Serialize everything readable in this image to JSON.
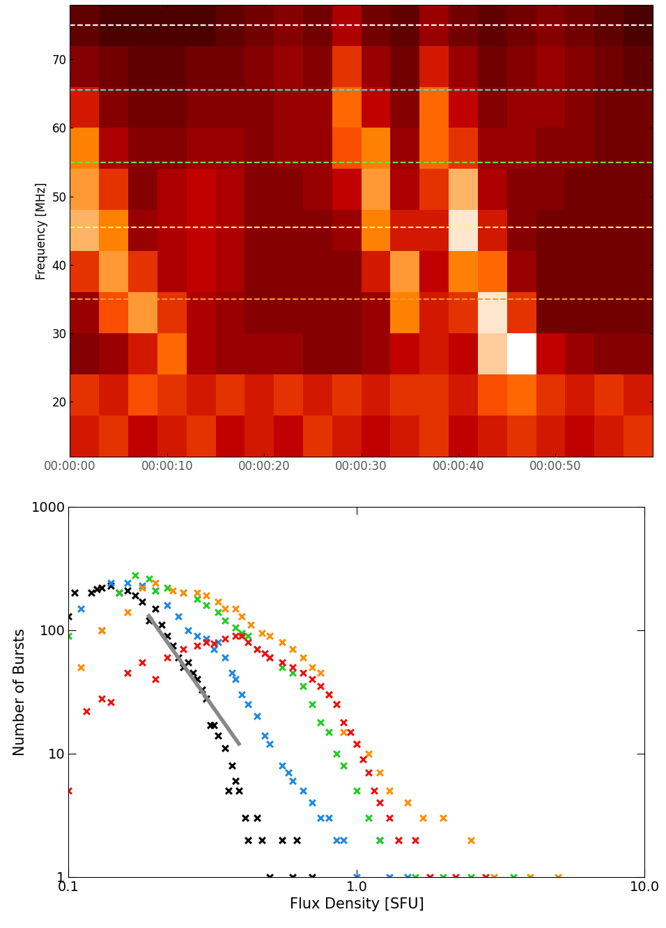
{
  "chart_data": [
    {
      "type": "heatmap",
      "ylabel": "Frequency [MHz]",
      "xlim": [
        0,
        60
      ],
      "ylim": [
        12,
        78
      ],
      "xticks": [
        {
          "value": 0,
          "label": "00:00:00"
        },
        {
          "value": 10,
          "label": "00:00:10"
        },
        {
          "value": 20,
          "label": "00:00:20"
        },
        {
          "value": 30,
          "label": "00:00:30"
        },
        {
          "value": 40,
          "label": "00:00:40"
        },
        {
          "value": 50,
          "label": "00:00:50"
        }
      ],
      "yticks": [
        20,
        30,
        40,
        50,
        60,
        70
      ],
      "time_edges": [
        0,
        3,
        6,
        9,
        12,
        15,
        18,
        21,
        24,
        27,
        30,
        33,
        36,
        39,
        42,
        45,
        48,
        51,
        54,
        57,
        60
      ],
      "frequency_edges": [
        78,
        72,
        66,
        60,
        54,
        48,
        42,
        36,
        30,
        24,
        18,
        12
      ],
      "value_range": [
        0,
        1
      ],
      "cells": [
        [
          0.25,
          0.2,
          0.2,
          0.2,
          0.2,
          0.25,
          0.3,
          0.35,
          0.3,
          0.45,
          0.3,
          0.25,
          0.4,
          0.3,
          0.25,
          0.3,
          0.35,
          0.3,
          0.25,
          0.2
        ],
        [
          0.35,
          0.3,
          0.25,
          0.25,
          0.3,
          0.3,
          0.35,
          0.4,
          0.35,
          0.6,
          0.4,
          0.3,
          0.55,
          0.4,
          0.3,
          0.35,
          0.4,
          0.35,
          0.3,
          0.25
        ],
        [
          0.55,
          0.35,
          0.3,
          0.3,
          0.35,
          0.35,
          0.35,
          0.4,
          0.4,
          0.7,
          0.5,
          0.35,
          0.7,
          0.5,
          0.35,
          0.4,
          0.4,
          0.35,
          0.3,
          0.3
        ],
        [
          0.75,
          0.45,
          0.35,
          0.35,
          0.4,
          0.4,
          0.35,
          0.4,
          0.4,
          0.65,
          0.75,
          0.4,
          0.7,
          0.6,
          0.4,
          0.4,
          0.35,
          0.35,
          0.3,
          0.3
        ],
        [
          0.8,
          0.6,
          0.35,
          0.45,
          0.5,
          0.45,
          0.35,
          0.35,
          0.4,
          0.5,
          0.8,
          0.45,
          0.6,
          0.85,
          0.45,
          0.35,
          0.35,
          0.3,
          0.3,
          0.3
        ],
        [
          0.85,
          0.75,
          0.4,
          0.45,
          0.5,
          0.45,
          0.35,
          0.35,
          0.35,
          0.4,
          0.75,
          0.55,
          0.55,
          0.95,
          0.55,
          0.35,
          0.3,
          0.3,
          0.3,
          0.3
        ],
        [
          0.6,
          0.8,
          0.6,
          0.45,
          0.5,
          0.45,
          0.35,
          0.35,
          0.35,
          0.35,
          0.55,
          0.8,
          0.5,
          0.75,
          0.7,
          0.4,
          0.3,
          0.3,
          0.3,
          0.3
        ],
        [
          0.4,
          0.65,
          0.8,
          0.6,
          0.45,
          0.4,
          0.35,
          0.35,
          0.35,
          0.35,
          0.4,
          0.75,
          0.55,
          0.6,
          0.95,
          0.6,
          0.3,
          0.3,
          0.3,
          0.3
        ],
        [
          0.35,
          0.4,
          0.55,
          0.7,
          0.45,
          0.4,
          0.4,
          0.4,
          0.35,
          0.35,
          0.4,
          0.5,
          0.55,
          0.5,
          0.9,
          1.0,
          0.5,
          0.4,
          0.35,
          0.35
        ],
        [
          0.6,
          0.55,
          0.65,
          0.6,
          0.55,
          0.6,
          0.55,
          0.6,
          0.55,
          0.6,
          0.55,
          0.6,
          0.6,
          0.55,
          0.65,
          0.7,
          0.6,
          0.55,
          0.6,
          0.55
        ],
        [
          0.55,
          0.6,
          0.5,
          0.55,
          0.6,
          0.5,
          0.55,
          0.5,
          0.6,
          0.55,
          0.5,
          0.55,
          0.6,
          0.5,
          0.55,
          0.6,
          0.55,
          0.5,
          0.55,
          0.6
        ]
      ],
      "frequency_lines": [
        {
          "value": 75,
          "color": "#ffffff",
          "line_style": "dashed"
        },
        {
          "value": 65.5,
          "color": "#40e0e0",
          "line_style": "dashed"
        },
        {
          "value": 55,
          "color": "#7fd84a",
          "line_style": "dashed"
        },
        {
          "value": 45.5,
          "color": "#ffff40",
          "line_style": "dashed"
        },
        {
          "value": 35,
          "color": "#ff9a30",
          "line_style": "dashed"
        }
      ]
    },
    {
      "type": "scatter",
      "xlabel": "Flux Density [SFU]",
      "ylabel": "Number of Bursts",
      "log": true,
      "xlim": [
        0.1,
        10
      ],
      "ylim": [
        1,
        1000
      ],
      "xticks": [
        0.1,
        {
          "value": 1,
          "label": "1.0"
        },
        {
          "value": 10,
          "label": "10.0"
        }
      ],
      "yticks": [
        1,
        10,
        100,
        1000
      ],
      "series": [
        {
          "color": "#000000",
          "marker": "x",
          "x": [
            0.1,
            0.105,
            0.12,
            0.125,
            0.13,
            0.14,
            0.15,
            0.16,
            0.17,
            0.18,
            0.19,
            0.2,
            0.21,
            0.22,
            0.23,
            0.24,
            0.25,
            0.26,
            0.27,
            0.28,
            0.29,
            0.3,
            0.31,
            0.32,
            0.33,
            0.35,
            0.36,
            0.37,
            0.38,
            0.39,
            0.41,
            0.42,
            0.45,
            0.47,
            0.5,
            0.55,
            0.6,
            0.62,
            0.7
          ],
          "values": [
            130,
            200,
            200,
            215,
            220,
            230,
            200,
            210,
            190,
            170,
            120,
            150,
            110,
            90,
            75,
            60,
            50,
            55,
            45,
            40,
            33,
            28,
            17,
            17,
            14,
            11,
            5,
            8,
            6,
            5,
            3,
            2,
            3,
            2,
            1,
            2,
            1,
            2,
            1
          ]
        },
        {
          "color": "#1e88e5",
          "marker": "x",
          "x": [
            0.11,
            0.13,
            0.14,
            0.16,
            0.18,
            0.2,
            0.22,
            0.24,
            0.26,
            0.28,
            0.3,
            0.32,
            0.33,
            0.35,
            0.37,
            0.38,
            0.4,
            0.42,
            0.45,
            0.48,
            0.5,
            0.55,
            0.58,
            0.6,
            0.65,
            0.7,
            0.75,
            0.8,
            0.85,
            0.9,
            1.0,
            1.2,
            1.3,
            1.5
          ],
          "values": [
            150,
            100,
            240,
            240,
            230,
            210,
            160,
            130,
            100,
            90,
            85,
            70,
            80,
            60,
            45,
            40,
            30,
            25,
            20,
            14,
            12,
            8,
            7,
            6,
            5,
            4,
            3,
            3,
            2,
            2,
            1,
            2,
            1,
            1
          ]
        },
        {
          "color": "#22cc22",
          "marker": "x",
          "x": [
            0.1,
            0.15,
            0.17,
            0.19,
            0.2,
            0.22,
            0.25,
            0.28,
            0.3,
            0.33,
            0.35,
            0.38,
            0.4,
            0.42,
            0.45,
            0.5,
            0.55,
            0.6,
            0.65,
            0.7,
            0.75,
            0.8,
            0.85,
            0.9,
            1.0,
            1.1,
            1.2,
            1.4,
            1.6,
            2.0,
            2.5,
            3.5
          ],
          "values": [
            90,
            200,
            280,
            260,
            210,
            220,
            200,
            180,
            160,
            140,
            120,
            105,
            95,
            90,
            70,
            60,
            50,
            45,
            35,
            25,
            18,
            15,
            10,
            8,
            5,
            3,
            2,
            2,
            1,
            1,
            1,
            1
          ]
        },
        {
          "color": "#ff8c00",
          "marker": "x",
          "x": [
            0.11,
            0.13,
            0.16,
            0.18,
            0.2,
            0.23,
            0.25,
            0.28,
            0.3,
            0.33,
            0.35,
            0.38,
            0.4,
            0.43,
            0.47,
            0.5,
            0.55,
            0.6,
            0.65,
            0.7,
            0.75,
            0.8,
            0.85,
            0.9,
            1.0,
            1.1,
            1.2,
            1.3,
            1.5,
            1.7,
            2.0,
            2.5,
            3.0,
            4.0,
            5.0
          ],
          "values": [
            50,
            100,
            140,
            220,
            240,
            210,
            200,
            200,
            190,
            170,
            150,
            150,
            130,
            110,
            95,
            90,
            80,
            70,
            60,
            50,
            45,
            30,
            25,
            15,
            12,
            10,
            7,
            5,
            4,
            3,
            3,
            2,
            1,
            1,
            1
          ]
        },
        {
          "color": "#ee1111",
          "marker": "x",
          "x": [
            0.1,
            0.115,
            0.13,
            0.14,
            0.16,
            0.18,
            0.2,
            0.22,
            0.25,
            0.28,
            0.3,
            0.32,
            0.35,
            0.38,
            0.4,
            0.42,
            0.45,
            0.48,
            0.5,
            0.55,
            0.6,
            0.65,
            0.7,
            0.75,
            0.8,
            0.85,
            0.9,
            0.95,
            1.0,
            1.05,
            1.1,
            1.15,
            1.2,
            1.3,
            1.4,
            1.6,
            1.8,
            2.2,
            2.8
          ],
          "values": [
            5,
            22,
            28,
            26,
            45,
            55,
            40,
            60,
            70,
            75,
            80,
            78,
            85,
            90,
            90,
            80,
            70,
            65,
            60,
            55,
            50,
            45,
            40,
            35,
            30,
            25,
            18,
            15,
            12,
            9,
            7,
            5,
            4,
            3,
            2,
            2,
            1,
            1,
            1
          ]
        }
      ],
      "fit": {
        "color": "#888888",
        "line_style": "solid",
        "x": [
          0.19,
          0.39
        ],
        "values": [
          130,
          12
        ]
      }
    }
  ]
}
